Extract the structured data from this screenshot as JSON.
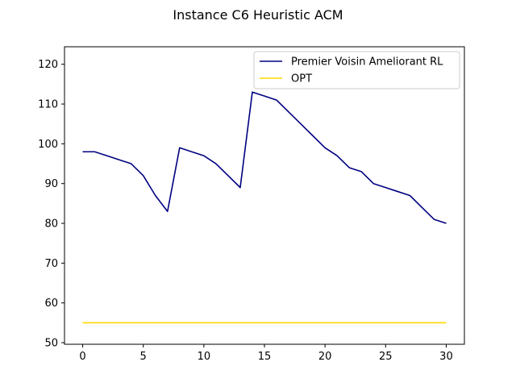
{
  "chart_data": {
    "type": "line",
    "title": "Instance C6 Heuristic ACM",
    "xlabel": "",
    "ylabel": "",
    "xlim": [
      -1.5,
      31.5
    ],
    "ylim": [
      49.6,
      124.4
    ],
    "x_ticks": [
      0,
      5,
      10,
      15,
      20,
      25,
      30
    ],
    "y_ticks": [
      50,
      60,
      70,
      80,
      90,
      100,
      110,
      120
    ],
    "grid": false,
    "legend_position": "upper right",
    "series": [
      {
        "name": "Premier Voisin Ameliorant RL",
        "color": "#000080",
        "x": [
          0,
          1,
          2,
          3,
          4,
          5,
          6,
          7,
          8,
          9,
          10,
          11,
          12,
          13,
          14,
          15,
          16,
          17,
          18,
          19,
          20,
          21,
          22,
          23,
          24,
          25,
          26,
          27,
          28,
          29,
          30
        ],
        "y": [
          98,
          98,
          97,
          96,
          95,
          92,
          87,
          83,
          99,
          98,
          97,
          95,
          92,
          89,
          113,
          112,
          111,
          108,
          105,
          102,
          99,
          97,
          94,
          93,
          90,
          89,
          88,
          87,
          84,
          81,
          80
        ]
      },
      {
        "name": "OPT",
        "color": "#FFD700",
        "x": [
          0,
          1,
          2,
          3,
          4,
          5,
          6,
          7,
          8,
          9,
          10,
          11,
          12,
          13,
          14,
          15,
          16,
          17,
          18,
          19,
          20,
          21,
          22,
          23,
          24,
          25,
          26,
          27,
          28,
          29,
          30
        ],
        "y": [
          55,
          55,
          55,
          55,
          55,
          55,
          55,
          55,
          55,
          55,
          55,
          55,
          55,
          55,
          55,
          55,
          55,
          55,
          55,
          55,
          55,
          55,
          55,
          55,
          55,
          55,
          55,
          55,
          55,
          55,
          55
        ]
      }
    ]
  }
}
